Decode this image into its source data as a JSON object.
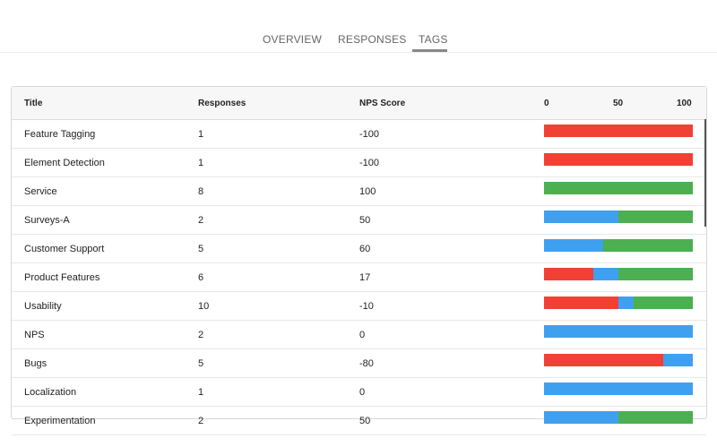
{
  "tabs": [
    {
      "label": "OVERVIEW",
      "active": false
    },
    {
      "label": "RESPONSES",
      "active": false
    },
    {
      "label": "TAGS",
      "active": true
    }
  ],
  "colors": {
    "detractor": "#f04134",
    "passive": "#40a0f0",
    "promoter": "#4caf50"
  },
  "table": {
    "headers": {
      "title": "Title",
      "responses": "Responses",
      "nps": "NPS Score",
      "axis": [
        "0",
        "50",
        "100"
      ]
    },
    "rows": [
      {
        "title": "Feature Tagging",
        "responses": "1",
        "nps": "-100",
        "dist": [
          100,
          0,
          0
        ]
      },
      {
        "title": "Element Detection",
        "responses": "1",
        "nps": "-100",
        "dist": [
          100,
          0,
          0
        ]
      },
      {
        "title": "Service",
        "responses": "8",
        "nps": "100",
        "dist": [
          0,
          0,
          100
        ]
      },
      {
        "title": "Surveys-A",
        "responses": "2",
        "nps": "50",
        "dist": [
          0,
          50,
          50
        ]
      },
      {
        "title": "Customer Support",
        "responses": "5",
        "nps": "60",
        "dist": [
          0,
          40,
          60
        ]
      },
      {
        "title": "Product Features",
        "responses": "6",
        "nps": "17",
        "dist": [
          33,
          17,
          50
        ]
      },
      {
        "title": "Usability",
        "responses": "10",
        "nps": "-10",
        "dist": [
          50,
          10,
          40
        ]
      },
      {
        "title": "NPS",
        "responses": "2",
        "nps": "0",
        "dist": [
          0,
          100,
          0
        ]
      },
      {
        "title": "Bugs",
        "responses": "5",
        "nps": "-80",
        "dist": [
          80,
          20,
          0
        ]
      },
      {
        "title": "Localization",
        "responses": "1",
        "nps": "0",
        "dist": [
          0,
          100,
          0
        ]
      },
      {
        "title": "Experimentation",
        "responses": "2",
        "nps": "50",
        "dist": [
          0,
          50,
          50
        ]
      }
    ]
  }
}
